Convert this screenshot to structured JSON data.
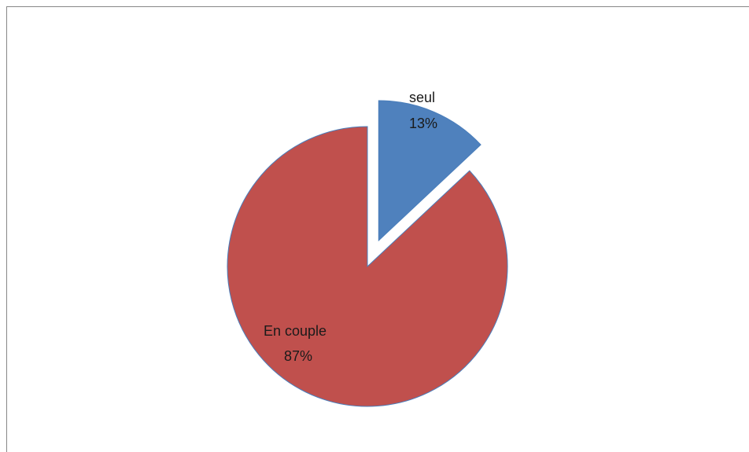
{
  "chart_data": {
    "type": "pie",
    "slices": [
      {
        "label": "seul",
        "value": 13,
        "value_label": "13%",
        "color": "#4f81bd",
        "exploded": true
      },
      {
        "label": "En couple",
        "value": 87,
        "value_label": "87%",
        "color": "#c0504d",
        "exploded": false
      }
    ],
    "legend": false
  }
}
